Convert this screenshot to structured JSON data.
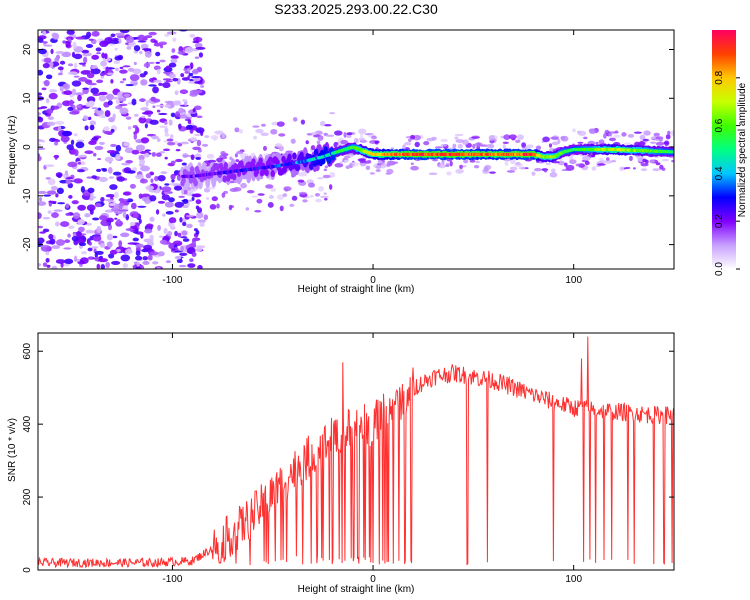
{
  "page_title": "S233.2025.293.00.22.C30",
  "chart_data": [
    {
      "type": "heatmap",
      "title": "S233.2025.293.00.22.C30",
      "xlabel": "Height of straight line (km)",
      "ylabel": "Frequency (Hz)",
      "xlim": [
        -167,
        150
      ],
      "ylim": [
        -25,
        24
      ],
      "xticks": [
        -100,
        0,
        100
      ],
      "yticks": [
        -20,
        -10,
        0,
        10,
        20
      ],
      "xtick_labels": [
        "-100",
        "0",
        "100"
      ],
      "ytick_labels": [
        "-20",
        "-10",
        "0",
        "10",
        "20"
      ],
      "colorbar": {
        "label": "Normalized spectral amplitude",
        "range": [
          0,
          1
        ],
        "ticks": [
          0.0,
          0.2,
          0.4,
          0.6,
          0.8
        ],
        "tick_labels": [
          "0.0",
          "0.2",
          "0.4",
          "0.6",
          "0.8"
        ],
        "colors": [
          "#ffffff",
          "#c8a0ff",
          "#8000ff",
          "#0000ff",
          "#00c8ff",
          "#00ff80",
          "#40ff00",
          "#c8ff00",
          "#ffc800",
          "#ff4000",
          "#ff0060"
        ]
      },
      "ridge": {
        "description": "Dominant narrowband signal near 0 Hz",
        "x": [
          -90,
          -70,
          -50,
          -35,
          -25,
          -18,
          -10,
          0,
          20,
          40,
          60,
          80,
          85,
          90,
          95,
          100,
          120,
          150
        ],
        "frequency": [
          -6,
          -5,
          -4,
          -3,
          -2,
          -1,
          0,
          -1.5,
          -1.5,
          -1.5,
          -1.5,
          -1.5,
          -2,
          -2,
          -1,
          -0.5,
          -0.5,
          -1
        ],
        "amplitude": [
          0.25,
          0.3,
          0.32,
          0.4,
          0.5,
          0.55,
          0.6,
          0.8,
          0.95,
          0.95,
          0.9,
          0.95,
          0.7,
          0.7,
          0.6,
          0.55,
          0.75,
          0.55
        ]
      }
    },
    {
      "type": "line",
      "title": "",
      "xlabel": "Height of straight line (km)",
      "ylabel": "SNR (10 * v/v)",
      "xlim": [
        -167,
        150
      ],
      "ylim": [
        0,
        650
      ],
      "xticks": [
        -100,
        0,
        100
      ],
      "yticks": [
        0,
        200,
        400,
        600
      ],
      "xtick_labels": [
        "-100",
        "0",
        "100"
      ],
      "ytick_labels": [
        "0",
        "200",
        "400",
        "600"
      ],
      "color": "#ff3030",
      "series": [
        {
          "name": "SNR",
          "x": [
            -167,
            -140,
            -110,
            -90,
            -80,
            -70,
            -60,
            -50,
            -40,
            -30,
            -20,
            -10,
            0,
            10,
            20,
            30,
            40,
            50,
            60,
            70,
            80,
            90,
            100,
            110,
            120,
            130,
            140,
            150
          ],
          "values": [
            20,
            20,
            20,
            25,
            60,
            100,
            150,
            210,
            270,
            320,
            360,
            390,
            400,
            450,
            500,
            530,
            540,
            530,
            520,
            500,
            480,
            460,
            445,
            440,
            435,
            430,
            425,
            425
          ]
        }
      ],
      "spikes_down_x": [
        -45,
        -35,
        -28,
        -25,
        -20,
        -17,
        -14,
        -10,
        -7,
        -4,
        -1,
        3,
        6,
        10,
        13,
        16,
        19,
        47,
        57,
        90,
        105,
        108,
        111,
        115,
        119,
        127,
        130,
        140,
        145,
        149
      ],
      "spikes_up": [
        {
          "x": -15,
          "value": 570
        },
        {
          "x": 107,
          "value": 640
        },
        {
          "x": 104,
          "value": 580
        }
      ]
    }
  ]
}
